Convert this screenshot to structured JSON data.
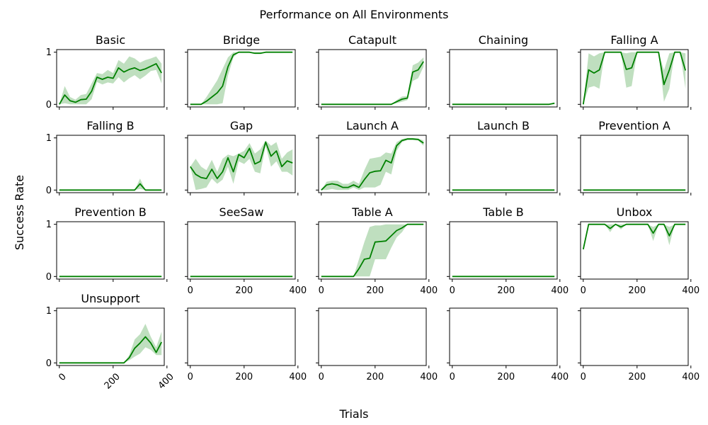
{
  "title": "Performance on All Environments",
  "xlabel": "Trials",
  "ylabel": "Success Rate",
  "colors": {
    "line": "#008000",
    "band": "#008000"
  },
  "chart_data": {
    "type": "line",
    "grid": false,
    "xlim": [
      -10,
      390
    ],
    "ylim": [
      -0.05,
      1.05
    ],
    "xticks": [
      0,
      200,
      400
    ],
    "yticks": [
      0,
      1
    ],
    "x": [
      0,
      20,
      40,
      60,
      80,
      100,
      120,
      140,
      160,
      180,
      200,
      220,
      240,
      260,
      280,
      300,
      320,
      340,
      360,
      380
    ],
    "panels": [
      {
        "title": "Basic",
        "mean": [
          0.0,
          0.18,
          0.07,
          0.04,
          0.09,
          0.1,
          0.25,
          0.52,
          0.48,
          0.52,
          0.5,
          0.7,
          0.62,
          0.67,
          0.7,
          0.65,
          0.68,
          0.73,
          0.78,
          0.6
        ],
        "lower": [
          0.0,
          0.02,
          0.0,
          0.0,
          0.0,
          0.0,
          0.1,
          0.43,
          0.38,
          0.42,
          0.4,
          0.52,
          0.42,
          0.5,
          0.56,
          0.48,
          0.55,
          0.64,
          0.66,
          0.4
        ],
        "upper": [
          0.0,
          0.35,
          0.14,
          0.09,
          0.18,
          0.2,
          0.4,
          0.6,
          0.58,
          0.66,
          0.6,
          0.85,
          0.78,
          0.92,
          0.88,
          0.8,
          0.85,
          0.88,
          0.92,
          0.78
        ]
      },
      {
        "title": "Bridge",
        "mean": [
          0.0,
          0.0,
          0.0,
          0.06,
          0.14,
          0.22,
          0.35,
          0.72,
          0.95,
          1.0,
          1.0,
          1.0,
          0.98,
          0.98,
          1.0,
          1.0,
          1.0,
          1.0,
          1.0,
          1.0
        ],
        "lower": [
          0.0,
          0.0,
          0.0,
          0.0,
          0.0,
          0.0,
          0.02,
          0.55,
          0.9,
          1.0,
          1.0,
          1.0,
          0.97,
          0.97,
          1.0,
          1.0,
          1.0,
          1.0,
          1.0,
          1.0
        ],
        "upper": [
          0.0,
          0.0,
          0.0,
          0.14,
          0.3,
          0.46,
          0.68,
          0.9,
          1.0,
          1.0,
          1.0,
          1.0,
          1.0,
          1.0,
          1.0,
          1.0,
          1.0,
          1.0,
          1.0,
          1.0
        ]
      },
      {
        "title": "Catapult",
        "mean": [
          0,
          0,
          0,
          0,
          0,
          0,
          0,
          0,
          0,
          0,
          0,
          0,
          0,
          0,
          0.05,
          0.1,
          0.12,
          0.62,
          0.66,
          0.82
        ],
        "lower": [
          0,
          0,
          0,
          0,
          0,
          0,
          0,
          0,
          0,
          0,
          0,
          0,
          0,
          0,
          0.02,
          0.05,
          0.08,
          0.45,
          0.5,
          0.72
        ],
        "upper": [
          0,
          0,
          0,
          0,
          0,
          0,
          0,
          0,
          0,
          0,
          0,
          0,
          0,
          0,
          0.08,
          0.15,
          0.16,
          0.75,
          0.8,
          0.9
        ]
      },
      {
        "title": "Chaining",
        "mean": [
          0,
          0,
          0,
          0,
          0,
          0,
          0,
          0,
          0,
          0,
          0,
          0,
          0,
          0,
          0,
          0,
          0,
          0,
          0,
          0.02
        ],
        "lower": [
          0,
          0,
          0,
          0,
          0,
          0,
          0,
          0,
          0,
          0,
          0,
          0,
          0,
          0,
          0,
          0,
          0,
          0,
          0,
          0.0
        ],
        "upper": [
          0,
          0,
          0,
          0,
          0,
          0,
          0,
          0,
          0,
          0,
          0,
          0,
          0,
          0,
          0,
          0,
          0,
          0,
          0,
          0.04
        ]
      },
      {
        "title": "Falling A",
        "mean": [
          0.0,
          0.66,
          0.6,
          0.66,
          1.0,
          1.0,
          1.0,
          1.0,
          0.67,
          0.7,
          1.0,
          1.0,
          1.0,
          1.0,
          1.0,
          0.38,
          0.66,
          1.0,
          1.0,
          0.65
        ],
        "lower": [
          0.0,
          0.32,
          0.35,
          0.3,
          1.0,
          1.0,
          1.0,
          1.0,
          0.32,
          0.35,
          1.0,
          1.0,
          1.0,
          1.0,
          1.0,
          0.05,
          0.3,
          1.0,
          1.0,
          0.3
        ],
        "upper": [
          0.0,
          0.98,
          0.92,
          0.98,
          1.0,
          1.0,
          1.0,
          1.0,
          0.98,
          1.0,
          1.0,
          1.0,
          1.0,
          1.0,
          1.0,
          0.65,
          0.98,
          1.0,
          1.0,
          0.98
        ]
      },
      {
        "title": "Falling B",
        "mean": [
          0,
          0,
          0,
          0,
          0,
          0,
          0,
          0,
          0,
          0,
          0,
          0,
          0,
          0,
          0,
          0.12,
          0,
          0,
          0,
          0
        ],
        "lower": [
          0,
          0,
          0,
          0,
          0,
          0,
          0,
          0,
          0,
          0,
          0,
          0,
          0,
          0,
          0,
          0.02,
          0,
          0,
          0,
          0
        ],
        "upper": [
          0,
          0,
          0,
          0,
          0,
          0,
          0,
          0,
          0,
          0,
          0,
          0,
          0,
          0,
          0,
          0.22,
          0,
          0,
          0,
          0
        ]
      },
      {
        "title": "Gap",
        "mean": [
          0.45,
          0.3,
          0.24,
          0.22,
          0.4,
          0.22,
          0.35,
          0.62,
          0.35,
          0.68,
          0.62,
          0.8,
          0.5,
          0.55,
          0.92,
          0.65,
          0.75,
          0.45,
          0.56,
          0.52
        ],
        "lower": [
          0.45,
          0.0,
          0.02,
          0.05,
          0.22,
          0.12,
          0.2,
          0.45,
          0.12,
          0.55,
          0.5,
          0.6,
          0.35,
          0.32,
          0.85,
          0.45,
          0.55,
          0.35,
          0.35,
          0.28
        ],
        "upper": [
          0.45,
          0.6,
          0.45,
          0.38,
          0.58,
          0.35,
          0.6,
          0.68,
          0.65,
          0.7,
          0.75,
          0.9,
          0.7,
          0.78,
          0.95,
          0.85,
          0.92,
          0.6,
          0.72,
          0.78
        ]
      },
      {
        "title": "Launch A",
        "mean": [
          0.0,
          0.1,
          0.12,
          0.1,
          0.05,
          0.05,
          0.1,
          0.05,
          0.2,
          0.33,
          0.36,
          0.37,
          0.57,
          0.52,
          0.85,
          0.95,
          0.98,
          0.98,
          0.97,
          0.9
        ],
        "lower": [
          0.0,
          0.0,
          0.02,
          0.0,
          0.0,
          0.0,
          0.05,
          0.0,
          0.05,
          0.05,
          0.05,
          0.1,
          0.35,
          0.3,
          0.75,
          0.92,
          0.96,
          0.96,
          0.95,
          0.85
        ],
        "upper": [
          0.0,
          0.16,
          0.18,
          0.18,
          0.12,
          0.12,
          0.18,
          0.12,
          0.38,
          0.6,
          0.62,
          0.64,
          0.72,
          0.7,
          0.92,
          0.98,
          1.0,
          1.0,
          0.99,
          0.95
        ]
      },
      {
        "title": "Launch B",
        "mean": [
          0,
          0,
          0,
          0,
          0,
          0,
          0,
          0,
          0,
          0,
          0,
          0,
          0,
          0,
          0,
          0,
          0,
          0,
          0,
          0
        ],
        "lower": [
          0,
          0,
          0,
          0,
          0,
          0,
          0,
          0,
          0,
          0,
          0,
          0,
          0,
          0,
          0,
          0,
          0,
          0,
          0,
          0
        ],
        "upper": [
          0,
          0,
          0,
          0,
          0,
          0,
          0,
          0,
          0,
          0,
          0,
          0,
          0,
          0,
          0,
          0,
          0,
          0,
          0,
          0
        ]
      },
      {
        "title": "Prevention A",
        "mean": [
          0,
          0,
          0,
          0,
          0,
          0,
          0,
          0,
          0,
          0,
          0,
          0,
          0,
          0,
          0,
          0,
          0,
          0,
          0,
          0
        ],
        "lower": [
          0,
          0,
          0,
          0,
          0,
          0,
          0,
          0,
          0,
          0,
          0,
          0,
          0,
          0,
          0,
          0,
          0,
          0,
          0,
          0
        ],
        "upper": [
          0,
          0,
          0,
          0,
          0,
          0,
          0,
          0,
          0,
          0,
          0,
          0,
          0,
          0,
          0,
          0,
          0,
          0,
          0,
          0
        ]
      },
      {
        "title": "Prevention B",
        "mean": [
          0,
          0,
          0,
          0,
          0,
          0,
          0,
          0,
          0,
          0,
          0,
          0,
          0,
          0,
          0,
          0,
          0,
          0,
          0,
          0
        ],
        "lower": [
          0,
          0,
          0,
          0,
          0,
          0,
          0,
          0,
          0,
          0,
          0,
          0,
          0,
          0,
          0,
          0,
          0,
          0,
          0,
          0
        ],
        "upper": [
          0,
          0,
          0,
          0,
          0,
          0,
          0,
          0,
          0,
          0,
          0,
          0,
          0,
          0,
          0,
          0,
          0,
          0,
          0,
          0
        ]
      },
      {
        "title": "SeeSaw",
        "mean": [
          0,
          0,
          0,
          0,
          0,
          0,
          0,
          0,
          0,
          0,
          0,
          0,
          0,
          0,
          0,
          0,
          0,
          0,
          0,
          0
        ],
        "lower": [
          0,
          0,
          0,
          0,
          0,
          0,
          0,
          0,
          0,
          0,
          0,
          0,
          0,
          0,
          0,
          0,
          0,
          0,
          0,
          0
        ],
        "upper": [
          0,
          0,
          0,
          0,
          0,
          0,
          0,
          0,
          0,
          0,
          0,
          0,
          0,
          0,
          0,
          0,
          0,
          0,
          0,
          0
        ]
      },
      {
        "title": "Table A",
        "mean": [
          0,
          0,
          0,
          0,
          0,
          0,
          0,
          0.15,
          0.33,
          0.35,
          0.66,
          0.67,
          0.68,
          0.78,
          0.88,
          0.93,
          1.0,
          1.0,
          1.0,
          1.0
        ],
        "lower": [
          0,
          0,
          0,
          0,
          0,
          0,
          0,
          0,
          0.0,
          0.0,
          0.33,
          0.33,
          0.33,
          0.55,
          0.75,
          0.85,
          1.0,
          1.0,
          1.0,
          1.0
        ],
        "upper": [
          0,
          0,
          0,
          0,
          0,
          0,
          0,
          0.33,
          0.66,
          0.95,
          0.98,
          0.98,
          1.0,
          1.0,
          1.0,
          1.0,
          1.0,
          1.0,
          1.0,
          1.0
        ]
      },
      {
        "title": "Table B",
        "mean": [
          0,
          0,
          0,
          0,
          0,
          0,
          0,
          0,
          0,
          0,
          0,
          0,
          0,
          0,
          0,
          0,
          0,
          0,
          0,
          0
        ],
        "lower": [
          0,
          0,
          0,
          0,
          0,
          0,
          0,
          0,
          0,
          0,
          0,
          0,
          0,
          0,
          0,
          0,
          0,
          0,
          0,
          0
        ],
        "upper": [
          0,
          0,
          0,
          0,
          0,
          0,
          0,
          0,
          0,
          0,
          0,
          0,
          0,
          0,
          0,
          0,
          0,
          0,
          0,
          0
        ]
      },
      {
        "title": "Unbox",
        "mean": [
          0.52,
          1.0,
          1.0,
          1.0,
          1.0,
          0.92,
          1.0,
          0.95,
          1.0,
          1.0,
          1.0,
          1.0,
          1.0,
          0.83,
          1.0,
          1.0,
          0.78,
          1.0,
          1.0,
          1.0
        ],
        "lower": [
          0.52,
          1.0,
          1.0,
          1.0,
          1.0,
          0.85,
          1.0,
          0.9,
          1.0,
          1.0,
          1.0,
          1.0,
          1.0,
          0.68,
          1.0,
          1.0,
          0.6,
          1.0,
          1.0,
          1.0
        ],
        "upper": [
          0.52,
          1.0,
          1.0,
          1.0,
          1.0,
          1.0,
          1.0,
          1.0,
          1.0,
          1.0,
          1.0,
          1.0,
          1.0,
          0.95,
          1.0,
          1.0,
          0.95,
          1.0,
          1.0,
          1.0
        ]
      },
      {
        "title": "Unsupport",
        "mean": [
          0,
          0,
          0,
          0,
          0,
          0,
          0,
          0,
          0,
          0,
          0,
          0,
          0,
          0.1,
          0.28,
          0.38,
          0.5,
          0.38,
          0.2,
          0.4
        ],
        "lower": [
          0,
          0,
          0,
          0,
          0,
          0,
          0,
          0,
          0,
          0,
          0,
          0,
          0,
          0.05,
          0.12,
          0.18,
          0.3,
          0.25,
          0.15,
          0.15
        ],
        "upper": [
          0,
          0,
          0,
          0,
          0,
          0,
          0,
          0,
          0,
          0,
          0,
          0,
          0,
          0.15,
          0.45,
          0.55,
          0.75,
          0.5,
          0.3,
          0.6
        ]
      },
      {
        "title": ""
      },
      {
        "title": ""
      },
      {
        "title": ""
      },
      {
        "title": ""
      }
    ]
  }
}
